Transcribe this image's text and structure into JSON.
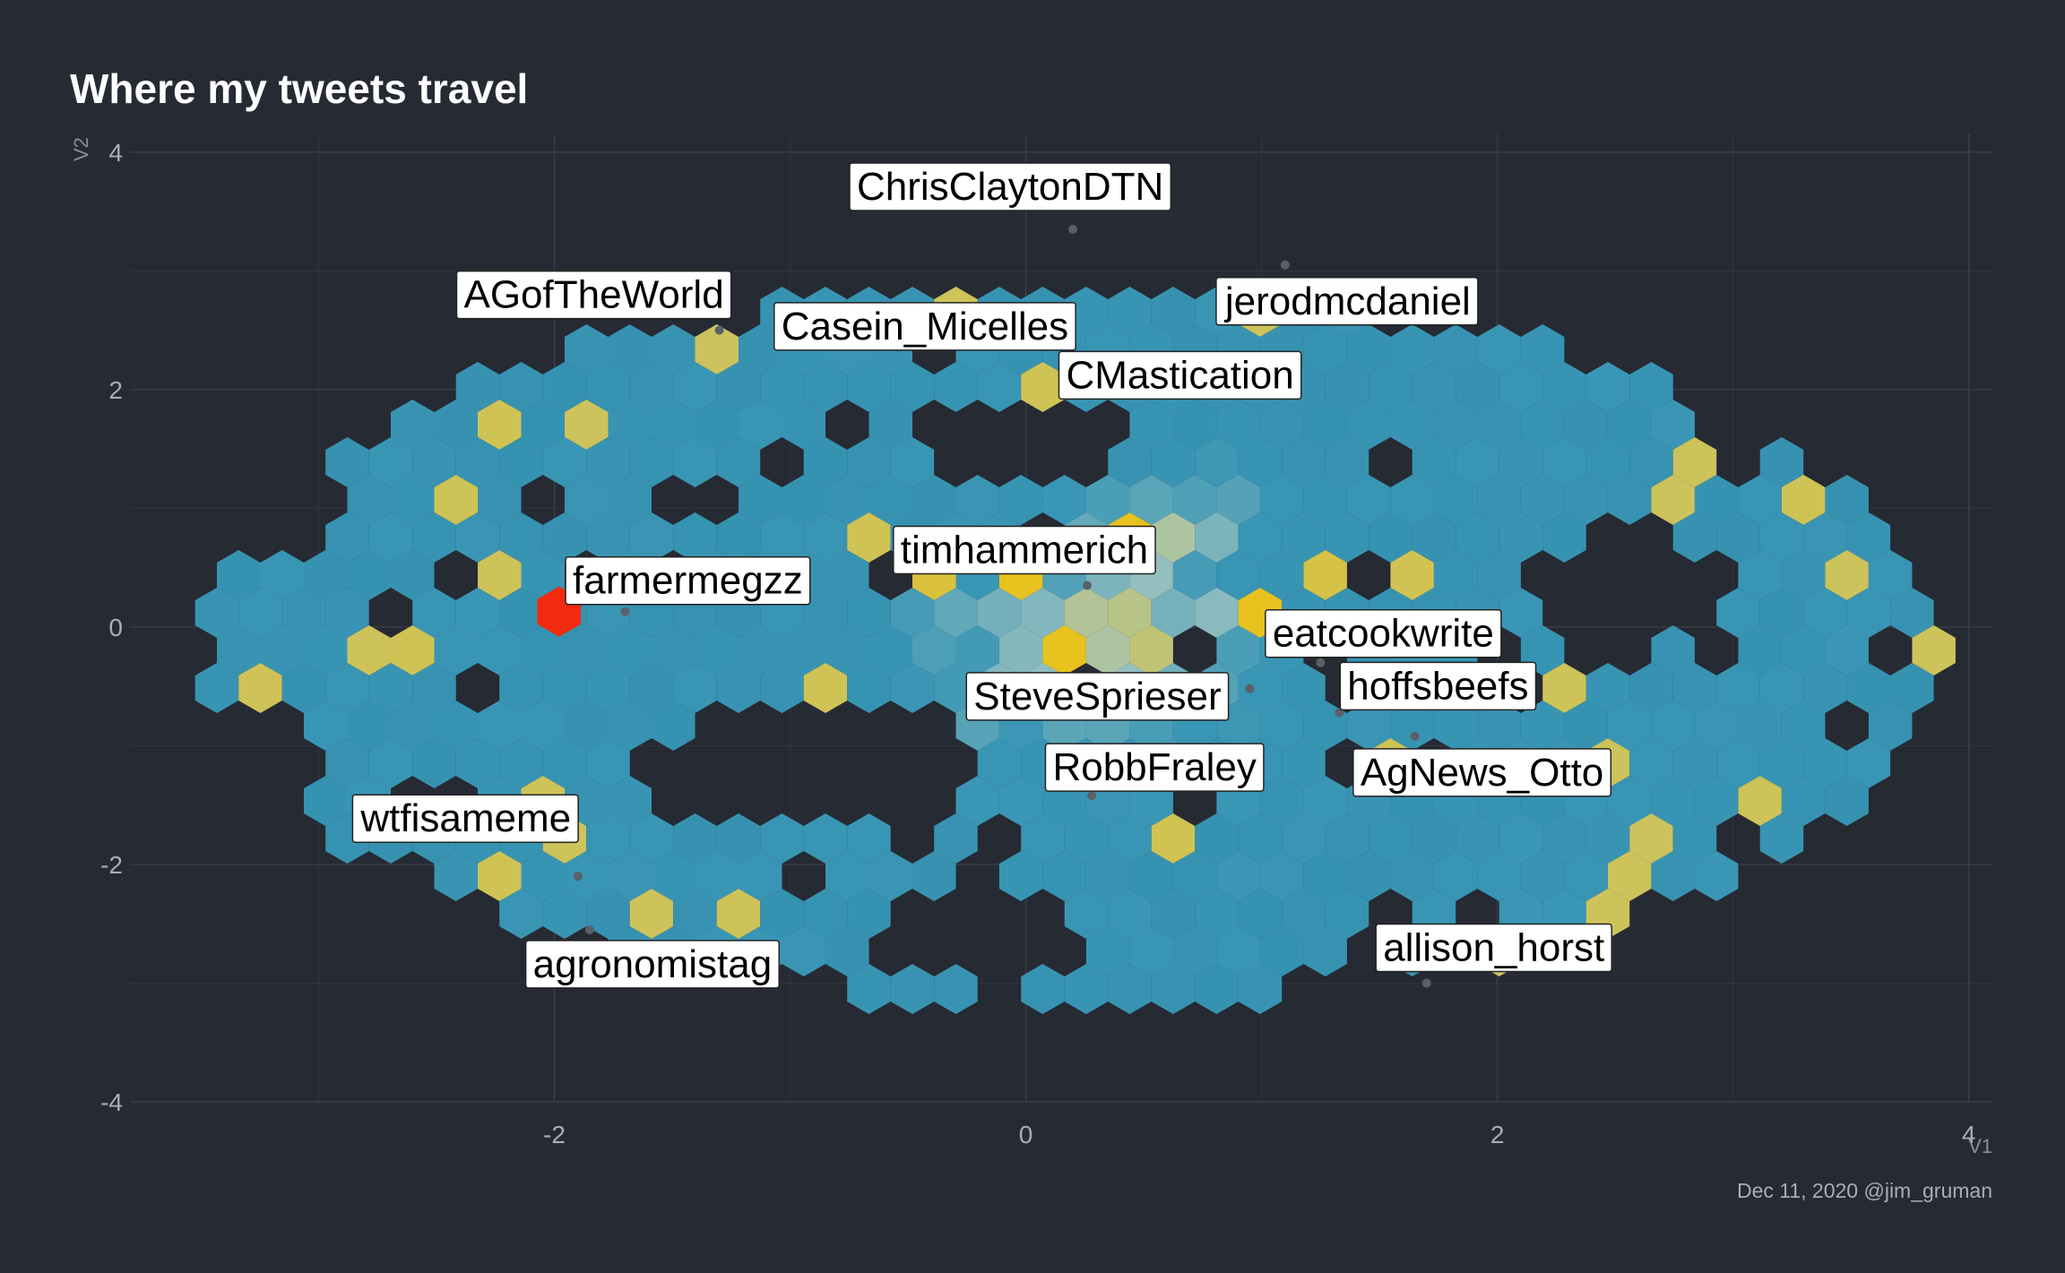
{
  "chart_data": {
    "type": "hexbin",
    "title": "Where my tweets travel",
    "xlabel": "V1",
    "ylabel": "V2",
    "caption": "Dec 11, 2020 @jim_gruman",
    "xlim": [
      -3.8,
      4.1
    ],
    "ylim": [
      -4.0,
      4.15
    ],
    "xticks": [
      -2,
      0,
      2,
      4
    ],
    "yticks": [
      4,
      2,
      0,
      -2,
      -4
    ],
    "colors": {
      "background": "#262a33",
      "low": "#3a96b5",
      "mid": "#9fc4c0",
      "high": "#e8c21e",
      "max": "#f22a10"
    },
    "labels": [
      {
        "text": "ChrisClaytonDTN",
        "x": 0.2,
        "y": 3.35
      },
      {
        "text": "AGofTheWorld",
        "x": -1.3,
        "y": 2.5
      },
      {
        "text": "Casein_Micelles",
        "x": -0.2,
        "y": 2.4
      },
      {
        "text": "jerodmcdaniel",
        "x": 1.1,
        "y": 3.05
      },
      {
        "text": "CMastication",
        "x": 0.35,
        "y": 2.2
      },
      {
        "text": "farmermegzz",
        "x": -1.7,
        "y": 0.13
      },
      {
        "text": "timhammerich",
        "x": 0.26,
        "y": 0.35
      },
      {
        "text": "eatcookwrite",
        "x": 1.25,
        "y": -0.3
      },
      {
        "text": "SteveSprieser",
        "x": 0.95,
        "y": -0.52
      },
      {
        "text": "hoffsbeefs",
        "x": 1.33,
        "y": -0.72
      },
      {
        "text": "RobbFraley",
        "x": 0.28,
        "y": -1.42
      },
      {
        "text": "AgNews_Otto",
        "x": 1.65,
        "y": -0.92
      },
      {
        "text": "wtfisameme",
        "x": -1.9,
        "y": -2.1
      },
      {
        "text": "agronomistag",
        "x": -1.85,
        "y": -2.55
      },
      {
        "text": "allison_horst",
        "x": 1.7,
        "y": -3.0
      }
    ]
  }
}
